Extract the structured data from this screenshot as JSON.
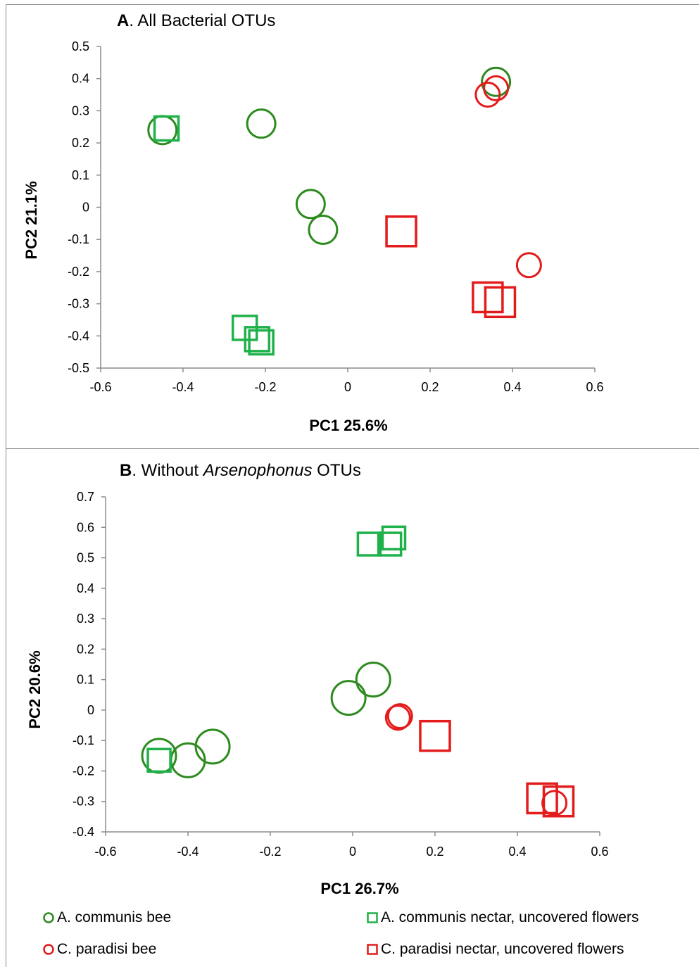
{
  "colors": {
    "green": "#2d8a1e",
    "green_sq": "#1fb14a",
    "red": "#e31b1b",
    "axis": "#8c8c8c"
  },
  "panels": [
    {
      "letter": "A",
      "title_rest": ". All Bacterial OTUs",
      "title_italic": "",
      "title_tail": ""
    },
    {
      "letter": "B",
      "title_rest": ". Without ",
      "title_italic": "Arsenophonus",
      "title_tail": " OTUs"
    }
  ],
  "legend": [
    {
      "label": "A. communis bee",
      "marker": "circle",
      "color": "#2d8a1e"
    },
    {
      "label": "A. communis nectar, uncovered flowers",
      "marker": "square",
      "color": "#1fb14a"
    },
    {
      "label": "C. paradisi bee",
      "marker": "circle",
      "color": "#e31b1b"
    },
    {
      "label": "C. paradisi nectar, uncovered flowers",
      "marker": "square",
      "color": "#e31b1b"
    }
  ],
  "chart_data": [
    {
      "type": "scatter",
      "title": "A. All Bacterial OTUs",
      "xlabel": "PC1    25.6%",
      "ylabel": "PC2   21.1%",
      "xlim": [
        -0.6,
        0.6
      ],
      "ylim": [
        -0.5,
        0.5
      ],
      "xticks": [
        "-0.6",
        "-0.4",
        "-0.2",
        "0",
        "0.2",
        "0.4",
        "0.6"
      ],
      "yticks": [
        "0.5",
        "0.4",
        "0.3",
        "0.2",
        "0.1",
        "0",
        "-0.1",
        "-0.2",
        "-0.3",
        "-0.4",
        "-0.5"
      ],
      "series": [
        {
          "name": "A. communis bee",
          "marker": "circle",
          "color": "#2d8a1e",
          "points": [
            [
              -0.45,
              0.24,
              20
            ],
            [
              -0.21,
              0.26,
              20
            ],
            [
              -0.09,
              0.01,
              20
            ],
            [
              -0.06,
              -0.07,
              20
            ],
            [
              0.36,
              0.39,
              20
            ]
          ]
        },
        {
          "name": "A. communis nectar, uncovered flowers",
          "marker": "square",
          "color": "#1fb14a",
          "points": [
            [
              -0.44,
              0.245,
              17
            ],
            [
              -0.25,
              -0.375,
              17
            ],
            [
              -0.22,
              -0.41,
              17
            ],
            [
              -0.21,
              -0.42,
              17
            ]
          ]
        },
        {
          "name": "C. paradisi bee",
          "marker": "circle",
          "color": "#e31b1b",
          "points": [
            [
              0.36,
              0.37,
              17
            ],
            [
              0.34,
              0.35,
              17
            ],
            [
              0.44,
              -0.18,
              17
            ]
          ]
        },
        {
          "name": "C. paradisi nectar, uncovered flowers",
          "marker": "square",
          "color": "#e31b1b",
          "points": [
            [
              0.13,
              -0.075,
              21
            ],
            [
              0.34,
              -0.28,
              21
            ],
            [
              0.37,
              -0.295,
              21
            ]
          ]
        }
      ]
    },
    {
      "type": "scatter",
      "title": "B. Without Arsenophonus OTUs",
      "xlabel": "PC1    26.7%",
      "ylabel": "PC2   20.6%",
      "xlim": [
        -0.6,
        0.6
      ],
      "ylim": [
        -0.4,
        0.7
      ],
      "xticks": [
        "-0.6",
        "-0.4",
        "-0.2",
        "0",
        "0.2",
        "0.4",
        "0.6"
      ],
      "yticks": [
        "0.7",
        "0.6",
        "0.5",
        "0.4",
        "0.3",
        "0.2",
        "0.1",
        "0",
        "-0.1",
        "-0.2",
        "-0.3",
        "-0.4"
      ],
      "series": [
        {
          "name": "A. communis bee",
          "marker": "circle",
          "color": "#2d8a1e",
          "points": [
            [
              -0.47,
              -0.15,
              24
            ],
            [
              -0.4,
              -0.165,
              24
            ],
            [
              -0.34,
              -0.12,
              24
            ],
            [
              -0.01,
              0.04,
              24
            ],
            [
              0.05,
              0.1,
              24
            ]
          ]
        },
        {
          "name": "A. communis nectar, uncovered flowers",
          "marker": "square",
          "color": "#1fb14a",
          "points": [
            [
              -0.47,
              -0.165,
              16
            ],
            [
              0.04,
              0.545,
              16
            ],
            [
              0.09,
              0.545,
              16
            ],
            [
              0.1,
              0.565,
              16
            ]
          ]
        },
        {
          "name": "C. paradisi bee",
          "marker": "circle",
          "color": "#e31b1b",
          "points": [
            [
              0.11,
              -0.025,
              17
            ],
            [
              0.115,
              -0.02,
              17
            ],
            [
              0.49,
              -0.305,
              17
            ]
          ]
        },
        {
          "name": "C. paradisi nectar, uncovered flowers",
          "marker": "square",
          "color": "#e31b1b",
          "points": [
            [
              0.2,
              -0.085,
              21
            ],
            [
              0.46,
              -0.29,
              21
            ],
            [
              0.5,
              -0.3,
              21
            ]
          ]
        }
      ]
    }
  ]
}
